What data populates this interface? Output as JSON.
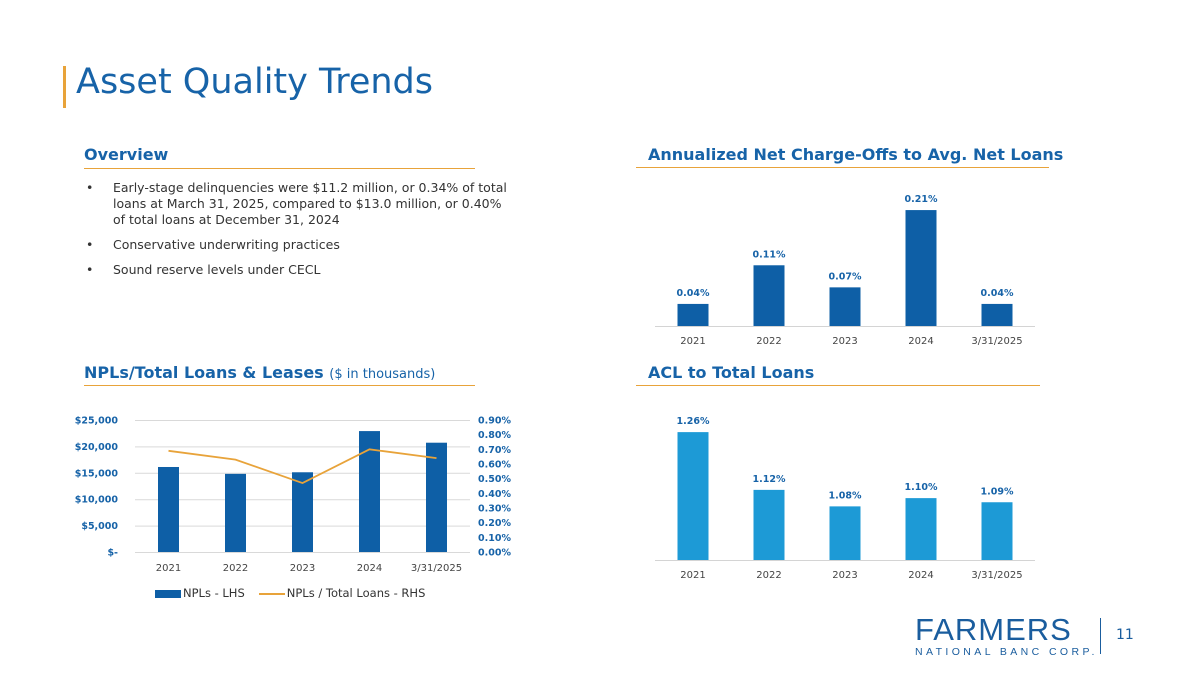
{
  "title": "Asset Quality Trends",
  "overview": {
    "heading": "Overview",
    "bullets": [
      "Early-stage delinquencies were $11.2 million, or 0.34% of total loans at March 31, 2025, compared to $13.0 million, or 0.40% of total loans at December 31, 2024",
      "Conservative underwriting practices",
      "Sound reserve levels under CECL"
    ]
  },
  "npl_section": {
    "heading": "NPLs/Total Loans & Leases",
    "subheading": "($ in thousands)"
  },
  "nco_section": {
    "heading": "Annualized Net Charge-Offs to Avg. Net Loans"
  },
  "acl_section": {
    "heading": "ACL to Total Loans"
  },
  "colors": {
    "title_blue": "#1763a8",
    "accent_gold": "#e8a33a",
    "bar_dark": "#0e5fa6",
    "bar_light": "#1d9ad6"
  },
  "chart_data": [
    {
      "id": "nco",
      "type": "bar",
      "categories": [
        "2021",
        "2022",
        "2023",
        "2024",
        "3/31/2025"
      ],
      "values": [
        0.04,
        0.11,
        0.07,
        0.21,
        0.04
      ],
      "labels": [
        "0.04%",
        "0.11%",
        "0.07%",
        "0.21%",
        "0.04%"
      ],
      "ylim": [
        0,
        0.25
      ],
      "color": "#0e5fa6"
    },
    {
      "id": "npl",
      "type": "bar+line",
      "categories": [
        "2021",
        "2022",
        "2023",
        "2024",
        "3/31/2025"
      ],
      "series": [
        {
          "name": "NPLs - LHS",
          "type": "bar",
          "axis": "left",
          "values": [
            16100,
            14800,
            15100,
            22900,
            20700
          ],
          "color": "#0e5fa6"
        },
        {
          "name": "NPLs / Total Loans - RHS",
          "type": "line",
          "axis": "right",
          "values": [
            0.69,
            0.63,
            0.47,
            0.7,
            0.64
          ],
          "color": "#e8a33a"
        }
      ],
      "left_axis": {
        "ylim": [
          0,
          25000
        ],
        "ticks": [
          "$-",
          "$5,000",
          "$10,000",
          "$15,000",
          "$20,000",
          "$25,000"
        ]
      },
      "right_axis": {
        "ylim": [
          0,
          0.9
        ],
        "ticks": [
          "0.00%",
          "0.10%",
          "0.20%",
          "0.30%",
          "0.40%",
          "0.50%",
          "0.60%",
          "0.70%",
          "0.80%",
          "0.90%"
        ]
      },
      "grid": true,
      "legend": "bottom"
    },
    {
      "id": "acl",
      "type": "bar",
      "categories": [
        "2021",
        "2022",
        "2023",
        "2024",
        "3/31/2025"
      ],
      "values": [
        1.26,
        1.12,
        1.08,
        1.1,
        1.09
      ],
      "labels": [
        "1.26%",
        "1.12%",
        "1.08%",
        "1.10%",
        "1.09%"
      ],
      "ylim": [
        0.95,
        1.27
      ],
      "color": "#1d9ad6"
    }
  ],
  "logo": {
    "word": "FARMERS",
    "sub": "NATIONAL BANC CORP."
  },
  "page_number": "11"
}
